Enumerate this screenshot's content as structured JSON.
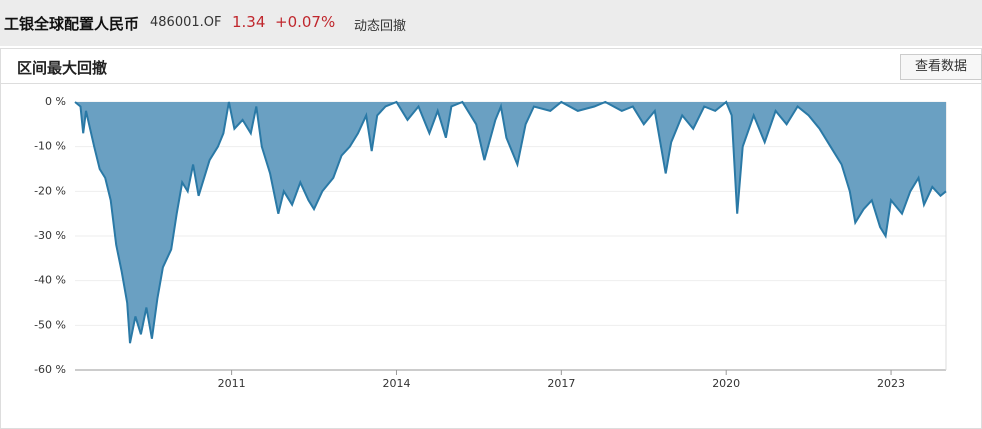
{
  "header": {
    "fund_name": "工银全球配置人民币",
    "code": "486001.OF",
    "price": "1.34",
    "change": "+0.07%",
    "tab": "动态回撤"
  },
  "panel": {
    "title": "区间最大回撤",
    "button": "查看数据"
  },
  "chart_data": {
    "type": "area",
    "color": "#2a79a6",
    "fill": "#6aa0c2",
    "grid": true,
    "xlim": [
      2008.15,
      2024.0
    ],
    "xticks": [
      2011,
      2014,
      2017,
      2020,
      2023
    ],
    "ylim": [
      -60,
      0
    ],
    "yticks": [
      {
        "value": 0,
        "label": "0 %"
      },
      {
        "value": -10,
        "label": "-10 %"
      },
      {
        "value": -20,
        "label": "-20 %"
      },
      {
        "value": -30,
        "label": "-30 %"
      },
      {
        "value": -40,
        "label": "-40 %"
      },
      {
        "value": -50,
        "label": "-50 %"
      },
      {
        "value": -60,
        "label": "-60 %"
      }
    ],
    "x": [
      2008.15,
      2008.25,
      2008.3,
      2008.35,
      2008.5,
      2008.6,
      2008.7,
      2008.8,
      2008.9,
      2009.0,
      2009.1,
      2009.15,
      2009.25,
      2009.35,
      2009.45,
      2009.55,
      2009.65,
      2009.75,
      2009.9,
      2010.0,
      2010.1,
      2010.2,
      2010.3,
      2010.4,
      2010.5,
      2010.6,
      2010.75,
      2010.85,
      2010.95,
      2011.05,
      2011.2,
      2011.35,
      2011.45,
      2011.55,
      2011.7,
      2011.85,
      2011.95,
      2012.1,
      2012.25,
      2012.4,
      2012.5,
      2012.65,
      2012.85,
      2013.0,
      2013.15,
      2013.3,
      2013.45,
      2013.55,
      2013.65,
      2013.8,
      2014.0,
      2014.2,
      2014.4,
      2014.6,
      2014.75,
      2014.9,
      2015.0,
      2015.2,
      2015.45,
      2015.6,
      2015.8,
      2015.9,
      2016.0,
      2016.2,
      2016.35,
      2016.5,
      2016.8,
      2017.0,
      2017.3,
      2017.6,
      2017.8,
      2018.1,
      2018.3,
      2018.5,
      2018.7,
      2018.9,
      2019.0,
      2019.2,
      2019.4,
      2019.6,
      2019.8,
      2020.0,
      2020.1,
      2020.2,
      2020.3,
      2020.5,
      2020.7,
      2020.9,
      2021.1,
      2021.3,
      2021.5,
      2021.7,
      2021.9,
      2022.1,
      2022.25,
      2022.35,
      2022.5,
      2022.65,
      2022.8,
      2022.9,
      2023.0,
      2023.2,
      2023.35,
      2023.5,
      2023.6,
      2023.75,
      2023.9,
      2024.0
    ],
    "values": [
      0,
      -1,
      -7,
      -2,
      -10,
      -15,
      -17,
      -22,
      -32,
      -38,
      -45,
      -54,
      -48,
      -52,
      -46,
      -53,
      -44,
      -37,
      -33,
      -25,
      -18,
      -20,
      -14,
      -21,
      -17,
      -13,
      -10,
      -7,
      0,
      -6,
      -4,
      -7,
      -1,
      -10,
      -16,
      -25,
      -20,
      -23,
      -18,
      -22,
      -24,
      -20,
      -17,
      -12,
      -10,
      -7,
      -3,
      -11,
      -3,
      -1,
      0,
      -4,
      -1,
      -7,
      -2,
      -8,
      -1,
      0,
      -5,
      -13,
      -4,
      -1,
      -8,
      -14,
      -5,
      -1,
      -2,
      0,
      -2,
      -1,
      0,
      -2,
      -1,
      -5,
      -2,
      -16,
      -9,
      -3,
      -6,
      -1,
      -2,
      0,
      -3,
      -25,
      -10,
      -3,
      -9,
      -2,
      -5,
      -1,
      -3,
      -6,
      -10,
      -14,
      -20,
      -27,
      -24,
      -22,
      -28,
      -30,
      -22,
      -25,
      -20,
      -17,
      -23,
      -19,
      -21,
      -20
    ]
  }
}
